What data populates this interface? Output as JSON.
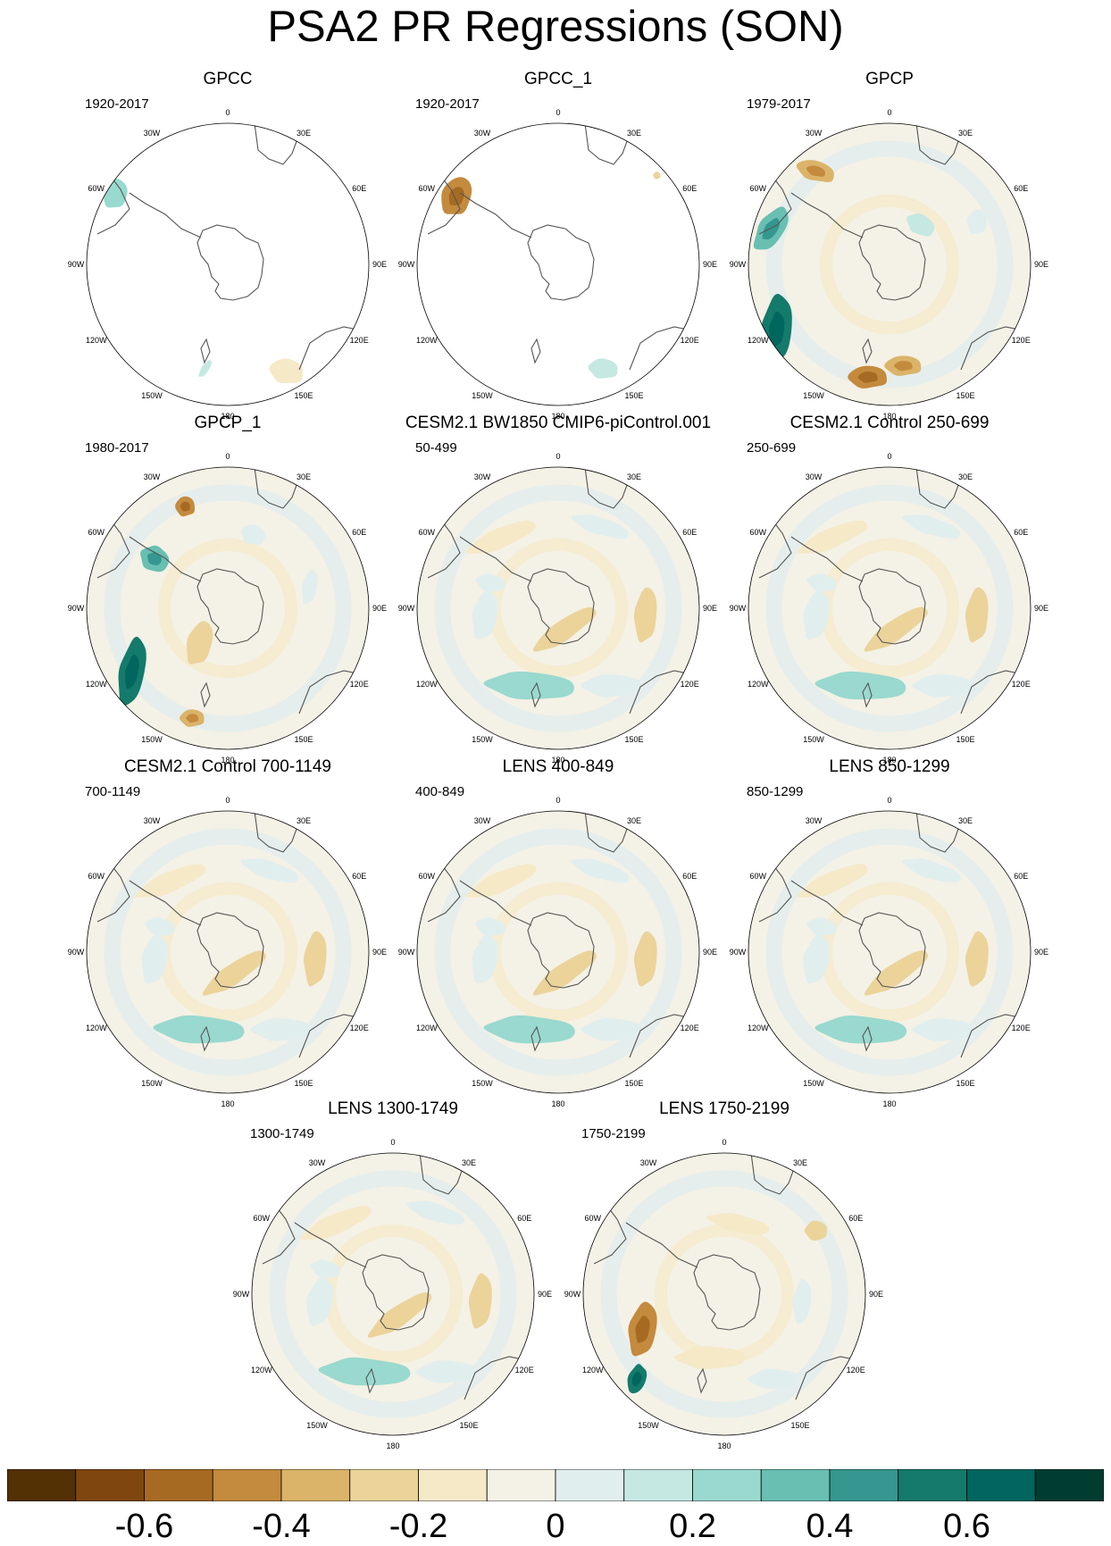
{
  "title": "PSA2 PR Regressions (SON)",
  "longitude_labels": [
    "0",
    "30E",
    "60E",
    "90E",
    "120E",
    "150E",
    "180",
    "150W",
    "120W",
    "90W",
    "60W",
    "30W"
  ],
  "panels": [
    {
      "title": "GPCC",
      "range": "1920-2017",
      "field": "gpcc"
    },
    {
      "title": "GPCC_1",
      "range": "1920-2017",
      "field": "gpcc1"
    },
    {
      "title": "GPCP",
      "range": "1979-2017",
      "field": "gpcp"
    },
    {
      "title": "GPCP_1",
      "range": "1980-2017",
      "field": "gpcp1"
    },
    {
      "title": "CESM2.1 BW1850 CMIP6-piControl.001",
      "range": "50-499",
      "field": "model"
    },
    {
      "title": "CESM2.1 Control 250-699",
      "range": "250-699",
      "field": "model"
    },
    {
      "title": "CESM2.1 Control 700-1149",
      "range": "700-1149",
      "field": "model"
    },
    {
      "title": "LENS 400-849",
      "range": "400-849",
      "field": "model"
    },
    {
      "title": "LENS 850-1299",
      "range": "850-1299",
      "field": "model"
    },
    {
      "title": "LENS 1300-1749",
      "range": "1300-1749",
      "field": "model"
    },
    {
      "title": "LENS 1750-2199",
      "range": "1750-2199",
      "field": "model2"
    }
  ],
  "colorbar": {
    "colors": [
      "#543005",
      "#7f470f",
      "#a66a23",
      "#c48a3d",
      "#dbb46a",
      "#ebd39a",
      "#f5e9c8",
      "#f4f1e6",
      "#e1eeee",
      "#c5e8e3",
      "#99d9cf",
      "#68bfb2",
      "#35978f",
      "#147a6b",
      "#01665e",
      "#003c30"
    ],
    "labels": [
      "-0.6",
      "-0.4",
      "-0.2",
      "0",
      "0.2",
      "0.4",
      "0.6"
    ],
    "label_values": [
      -0.6,
      -0.4,
      -0.2,
      0,
      0.2,
      0.4,
      0.6
    ],
    "min": -0.8,
    "max": 0.8
  }
}
